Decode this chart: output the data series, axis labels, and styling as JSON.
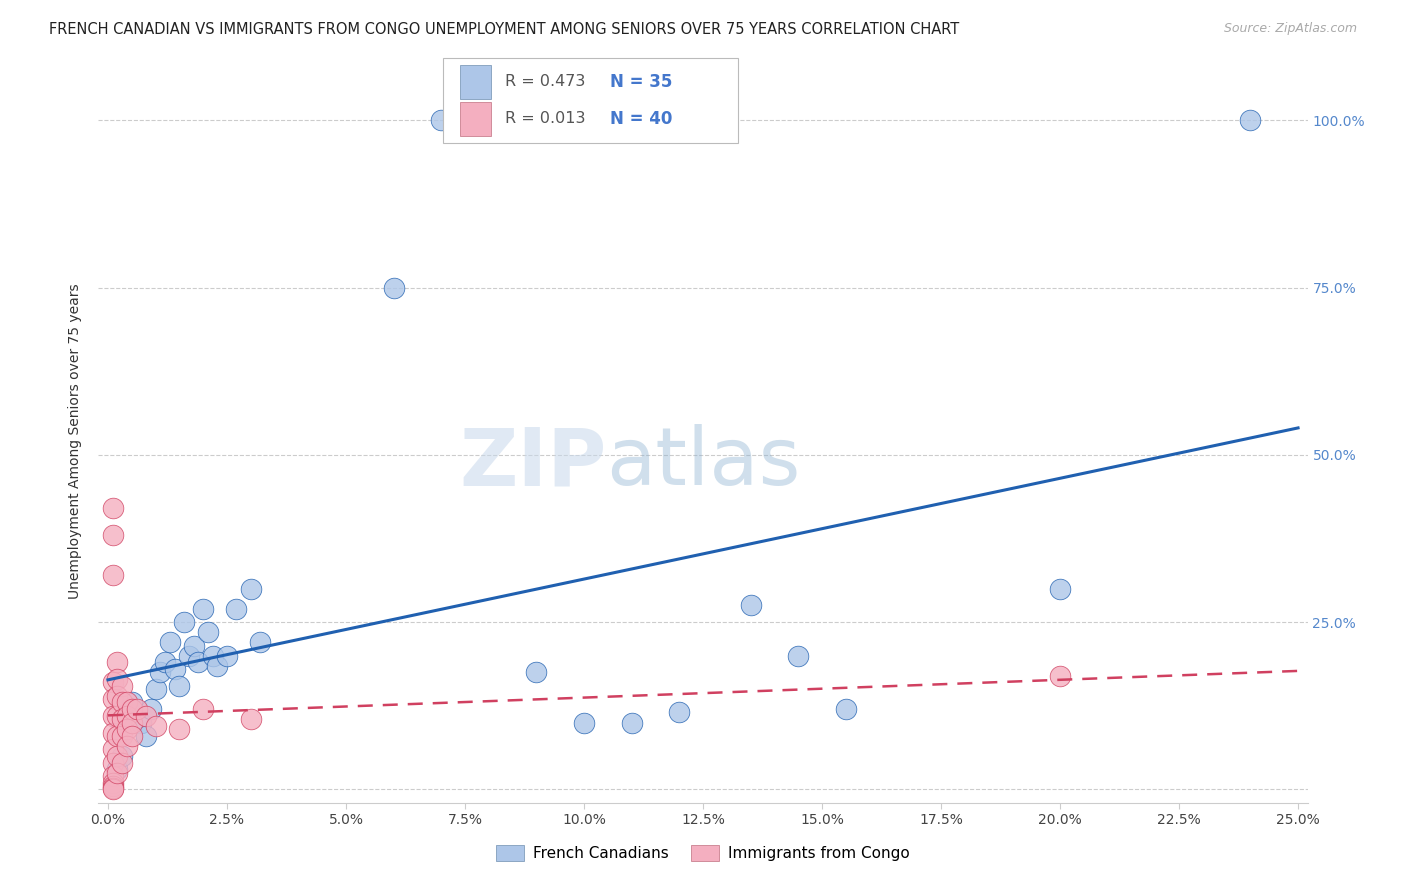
{
  "title": "FRENCH CANADIAN VS IMMIGRANTS FROM CONGO UNEMPLOYMENT AMONG SENIORS OVER 75 YEARS CORRELATION CHART",
  "source": "Source: ZipAtlas.com",
  "ylabel": "Unemployment Among Seniors over 75 years",
  "watermark_zip": "ZIP",
  "watermark_atlas": "atlas",
  "legend_label1": "French Canadians",
  "legend_label2": "Immigrants from Congo",
  "R1": 0.473,
  "N1": 35,
  "R2": 0.013,
  "N2": 40,
  "color_blue": "#adc6e8",
  "color_pink": "#f4afc0",
  "line_color_blue": "#2060b0",
  "line_color_pink": "#d04060",
  "background_color": "#ffffff",
  "blue_points_x": [
    0.002,
    0.003,
    0.005,
    0.007,
    0.008,
    0.009,
    0.01,
    0.011,
    0.012,
    0.013,
    0.014,
    0.015,
    0.016,
    0.017,
    0.018,
    0.019,
    0.02,
    0.021,
    0.022,
    0.023,
    0.025,
    0.027,
    0.03,
    0.032,
    0.06,
    0.07,
    0.09,
    0.1,
    0.11,
    0.12,
    0.135,
    0.145,
    0.155,
    0.2,
    0.24
  ],
  "blue_points_y": [
    0.03,
    0.05,
    0.13,
    0.1,
    0.08,
    0.12,
    0.15,
    0.175,
    0.19,
    0.22,
    0.18,
    0.155,
    0.25,
    0.2,
    0.215,
    0.19,
    0.27,
    0.235,
    0.2,
    0.185,
    0.2,
    0.27,
    0.3,
    0.22,
    0.75,
    1.0,
    0.175,
    0.1,
    0.1,
    0.115,
    0.275,
    0.2,
    0.12,
    0.3,
    1.0
  ],
  "pink_points_x": [
    0.001,
    0.001,
    0.001,
    0.001,
    0.001,
    0.001,
    0.001,
    0.001,
    0.001,
    0.001,
    0.001,
    0.001,
    0.001,
    0.001,
    0.002,
    0.002,
    0.002,
    0.002,
    0.002,
    0.002,
    0.002,
    0.003,
    0.003,
    0.003,
    0.003,
    0.003,
    0.004,
    0.004,
    0.004,
    0.004,
    0.005,
    0.005,
    0.005,
    0.006,
    0.008,
    0.01,
    0.015,
    0.02,
    0.03,
    0.2
  ],
  "pink_points_y": [
    0.42,
    0.38,
    0.32,
    0.16,
    0.135,
    0.11,
    0.085,
    0.06,
    0.04,
    0.02,
    0.01,
    0.005,
    0.002,
    0.001,
    0.19,
    0.165,
    0.14,
    0.11,
    0.08,
    0.05,
    0.025,
    0.155,
    0.13,
    0.105,
    0.08,
    0.04,
    0.13,
    0.11,
    0.09,
    0.065,
    0.12,
    0.1,
    0.08,
    0.12,
    0.11,
    0.095,
    0.09,
    0.12,
    0.105,
    0.17
  ],
  "xlim": [
    -0.002,
    0.252
  ],
  "ylim": [
    -0.02,
    1.06
  ],
  "xtick_positions": [
    0.0,
    0.025,
    0.05,
    0.075,
    0.1,
    0.125,
    0.15,
    0.175,
    0.2,
    0.225,
    0.25
  ],
  "xtick_labels": [
    "0.0%",
    "2.5%",
    "5.0%",
    "7.5%",
    "10.0%",
    "12.5%",
    "15.0%",
    "17.5%",
    "20.0%",
    "22.5%",
    "25.0%"
  ],
  "ytick_positions": [
    0.0,
    0.25,
    0.5,
    0.75,
    1.0
  ],
  "ytick_labels": [
    "",
    "25.0%",
    "50.0%",
    "75.0%",
    "100.0%"
  ],
  "grid_color": "#cccccc",
  "title_fontsize": 10.5,
  "source_fontsize": 9,
  "tick_fontsize": 10,
  "ylabel_fontsize": 10
}
